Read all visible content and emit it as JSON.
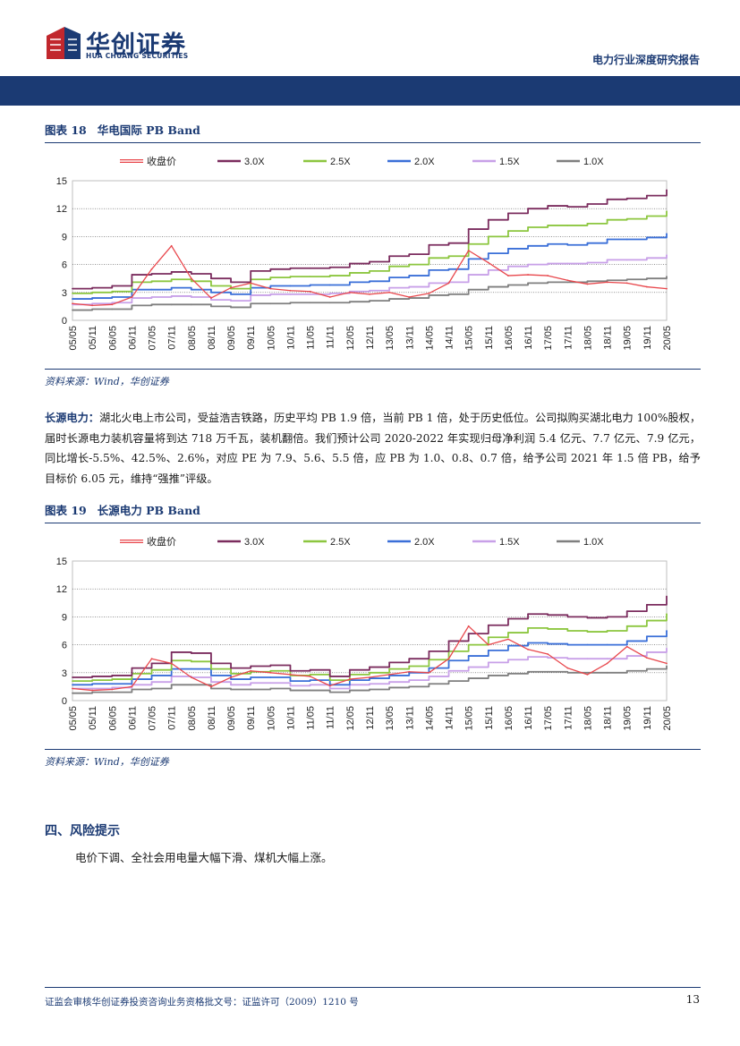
{
  "header": {
    "logo_cn": "华创证券",
    "logo_en": "HUA CHUANG SECURITIES",
    "report_title": "电力行业深度研究报告",
    "brand_color": "#1b3a73"
  },
  "figure18": {
    "label": "图表 18",
    "title": "华电国际 PB Band",
    "source": "资料来源：Wind，华创证券"
  },
  "figure19": {
    "label": "图表 19",
    "title": "长源电力 PB Band",
    "source": "资料来源：Wind，华创证券"
  },
  "paragraph": {
    "lead": "长源电力：",
    "body": "湖北火电上市公司，受益浩吉铁路，历史平均 PB 1.9 倍，当前 PB 1 倍，处于历史低位。公司拟购买湖北电力 100%股权，届时长源电力装机容量将到达 718 万千瓦，装机翻倍。我们预计公司 2020-2022 年实现归母净利润 5.4 亿元、7.7 亿元、7.9 亿元，同比增长-5.5%、42.5%、2.6%，对应 PE 为 7.9、5.6、5.5 倍，应 PB 为 1.0、0.8、0.7 倍，给予公司 2021 年 1.5 倍 PB，给予目标价 6.05 元，维持“强推”评级。"
  },
  "section": {
    "title": "四、风险提示",
    "text": "电价下调、全社会用电量大幅下滑、煤机大幅上涨。"
  },
  "footer": {
    "text": "证监会审核华创证券投资咨询业务资格批文号：证监许可（2009）1210 号",
    "page": "13"
  },
  "chart_data": [
    {
      "type": "line",
      "title": "华电国际 PB Band",
      "x": [
        "05/05",
        "05/11",
        "06/05",
        "06/11",
        "07/05",
        "07/11",
        "08/05",
        "08/11",
        "09/05",
        "09/11",
        "10/05",
        "10/11",
        "11/05",
        "11/11",
        "12/05",
        "12/11",
        "13/05",
        "13/11",
        "14/05",
        "14/11",
        "15/05",
        "15/11",
        "16/05",
        "16/11",
        "17/05",
        "17/11",
        "18/05",
        "18/11",
        "19/05",
        "19/11",
        "20/05"
      ],
      "ylim": [
        0,
        15
      ],
      "yticks": [
        0,
        3,
        6,
        9,
        12,
        15
      ],
      "grid": true,
      "legend_position": "top",
      "series": [
        {
          "name": "收盘价",
          "color": "#e8474c",
          "values": [
            1.8,
            1.6,
            1.7,
            2.5,
            5.5,
            8.0,
            4.5,
            2.4,
            3.5,
            4.0,
            3.4,
            3.2,
            3.1,
            2.5,
            3.0,
            2.8,
            3.0,
            2.5,
            2.9,
            4.0,
            7.5,
            6.2,
            4.8,
            4.9,
            4.8,
            4.3,
            3.9,
            4.1,
            4.0,
            3.6,
            3.4
          ]
        },
        {
          "name": "3.0X",
          "color": "#7b2c5e",
          "values": [
            3.4,
            3.5,
            3.7,
            4.9,
            5.0,
            5.2,
            5.0,
            4.5,
            4.1,
            5.3,
            5.5,
            5.6,
            5.6,
            5.7,
            6.1,
            6.3,
            6.9,
            7.1,
            8.1,
            8.3,
            9.8,
            10.8,
            11.5,
            12.0,
            12.3,
            12.2,
            12.5,
            13.0,
            13.1,
            13.4,
            14.0
          ]
        },
        {
          "name": "2.5X",
          "color": "#8cc63f",
          "values": [
            2.9,
            3.0,
            3.1,
            4.1,
            4.2,
            4.4,
            4.2,
            3.7,
            3.4,
            4.4,
            4.6,
            4.7,
            4.7,
            4.8,
            5.1,
            5.3,
            5.8,
            6.0,
            6.7,
            6.9,
            8.2,
            9.0,
            9.6,
            10.0,
            10.2,
            10.2,
            10.4,
            10.8,
            10.9,
            11.2,
            11.7
          ]
        },
        {
          "name": "2.0X",
          "color": "#3a6fd8",
          "values": [
            2.3,
            2.4,
            2.5,
            3.3,
            3.3,
            3.5,
            3.3,
            3.0,
            2.8,
            3.5,
            3.7,
            3.7,
            3.8,
            3.8,
            4.1,
            4.2,
            4.6,
            4.8,
            5.4,
            5.5,
            6.6,
            7.2,
            7.7,
            8.0,
            8.2,
            8.1,
            8.3,
            8.7,
            8.7,
            8.9,
            9.3
          ]
        },
        {
          "name": "1.5X",
          "color": "#c8a0e8",
          "values": [
            1.7,
            1.8,
            1.9,
            2.4,
            2.5,
            2.6,
            2.5,
            2.2,
            2.1,
            2.7,
            2.8,
            2.8,
            2.8,
            2.9,
            3.1,
            3.2,
            3.5,
            3.6,
            4.0,
            4.1,
            4.9,
            5.4,
            5.8,
            6.0,
            6.1,
            6.1,
            6.2,
            6.5,
            6.5,
            6.7,
            7.0
          ]
        },
        {
          "name": "1.0X",
          "color": "#7f7f7f",
          "values": [
            1.1,
            1.2,
            1.2,
            1.6,
            1.7,
            1.7,
            1.7,
            1.5,
            1.4,
            1.8,
            1.8,
            1.9,
            1.9,
            1.9,
            2.0,
            2.1,
            2.3,
            2.4,
            2.7,
            2.8,
            3.3,
            3.6,
            3.8,
            4.0,
            4.1,
            4.1,
            4.2,
            4.3,
            4.4,
            4.5,
            4.7
          ]
        }
      ]
    },
    {
      "type": "line",
      "title": "长源电力 PB Band",
      "x": [
        "05/05",
        "05/11",
        "06/05",
        "06/11",
        "07/05",
        "07/11",
        "08/05",
        "08/11",
        "09/05",
        "09/11",
        "10/05",
        "10/11",
        "11/05",
        "11/11",
        "12/05",
        "12/11",
        "13/05",
        "13/11",
        "14/05",
        "14/11",
        "15/05",
        "15/11",
        "16/05",
        "16/11",
        "17/05",
        "17/11",
        "18/05",
        "18/11",
        "19/05",
        "19/11",
        "20/05"
      ],
      "ylim": [
        0,
        15
      ],
      "yticks": [
        0,
        3,
        6,
        9,
        12,
        15
      ],
      "grid": true,
      "legend_position": "top",
      "series": [
        {
          "name": "收盘价",
          "color": "#e8474c",
          "values": [
            1.3,
            1.1,
            1.2,
            1.5,
            4.5,
            4.0,
            2.5,
            1.5,
            2.5,
            3.2,
            3.0,
            2.8,
            2.6,
            1.6,
            2.3,
            2.5,
            2.8,
            3.1,
            3.0,
            4.5,
            8.0,
            6.0,
            6.6,
            5.5,
            5.0,
            3.5,
            2.8,
            4.0,
            5.8,
            4.6,
            4.0
          ]
        },
        {
          "name": "3.0X",
          "color": "#7b2c5e",
          "values": [
            2.5,
            2.6,
            2.7,
            3.5,
            4.0,
            5.2,
            5.1,
            4.0,
            3.5,
            3.7,
            3.8,
            3.2,
            3.3,
            2.6,
            3.3,
            3.6,
            4.1,
            4.5,
            5.3,
            6.4,
            7.2,
            8.1,
            8.8,
            9.3,
            9.2,
            9.0,
            8.9,
            9.0,
            9.6,
            10.3,
            11.2
          ]
        },
        {
          "name": "2.5X",
          "color": "#8cc63f",
          "values": [
            2.1,
            2.2,
            2.3,
            2.9,
            3.3,
            4.3,
            4.2,
            3.4,
            2.9,
            3.1,
            3.2,
            2.7,
            2.8,
            2.2,
            2.8,
            3.0,
            3.4,
            3.7,
            4.4,
            5.3,
            6.0,
            6.8,
            7.3,
            7.8,
            7.7,
            7.5,
            7.4,
            7.5,
            8.0,
            8.6,
            9.3
          ]
        },
        {
          "name": "2.0X",
          "color": "#3a6fd8",
          "values": [
            1.7,
            1.8,
            1.8,
            2.3,
            2.7,
            3.4,
            3.4,
            2.7,
            2.3,
            2.5,
            2.5,
            2.1,
            2.2,
            1.7,
            2.2,
            2.4,
            2.7,
            3.0,
            3.5,
            4.3,
            4.8,
            5.4,
            5.9,
            6.2,
            6.1,
            6.0,
            6.0,
            6.0,
            6.4,
            6.9,
            7.5
          ]
        },
        {
          "name": "1.5X",
          "color": "#c8a0e8",
          "values": [
            1.3,
            1.3,
            1.4,
            1.7,
            2.0,
            2.6,
            2.5,
            2.0,
            1.7,
            1.9,
            1.9,
            1.6,
            1.7,
            1.3,
            1.7,
            1.8,
            2.0,
            2.2,
            2.6,
            3.2,
            3.6,
            4.1,
            4.4,
            4.7,
            4.6,
            4.5,
            4.5,
            4.5,
            4.8,
            5.2,
            5.6
          ]
        },
        {
          "name": "1.0X",
          "color": "#7f7f7f",
          "values": [
            0.8,
            0.9,
            0.9,
            1.2,
            1.3,
            1.7,
            1.7,
            1.3,
            1.2,
            1.2,
            1.3,
            1.1,
            1.1,
            0.9,
            1.1,
            1.2,
            1.4,
            1.5,
            1.8,
            2.1,
            2.4,
            2.7,
            2.9,
            3.1,
            3.1,
            3.0,
            3.0,
            3.0,
            3.2,
            3.4,
            3.7
          ]
        }
      ]
    }
  ]
}
